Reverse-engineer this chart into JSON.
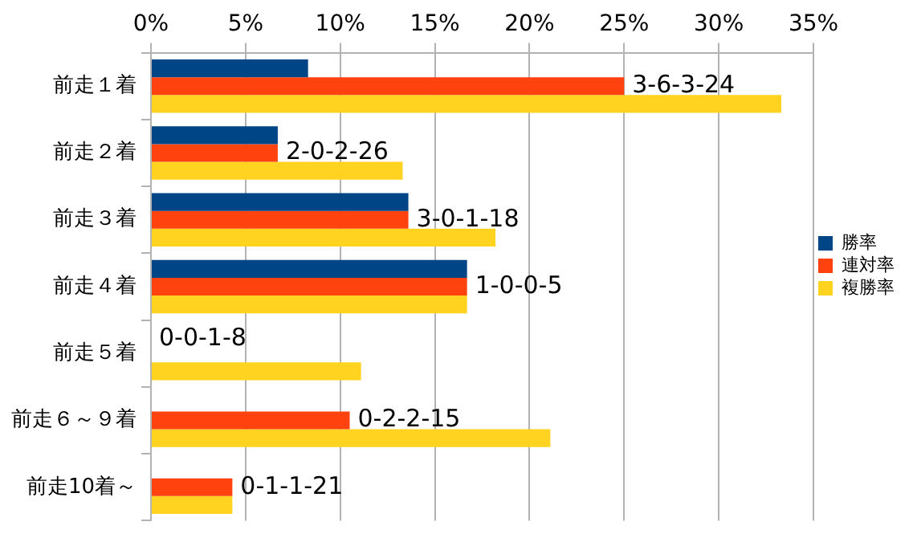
{
  "chart_data": {
    "type": "bar",
    "orientation": "horizontal",
    "categories": [
      "前走１着",
      "前走２着",
      "前走３着",
      "前走４着",
      "前走５着",
      "前走６～９着",
      "前走10着～"
    ],
    "series": [
      {
        "name": "勝率",
        "color": "#004586",
        "values": [
          8.3,
          6.7,
          13.6,
          16.7,
          0,
          0,
          0
        ]
      },
      {
        "name": "連対率",
        "color": "#ff420e",
        "values": [
          25,
          6.7,
          13.6,
          16.7,
          0,
          10.5,
          4.3
        ]
      },
      {
        "name": "複勝率",
        "color": "#ffd320",
        "values": [
          33.3,
          13.3,
          18.2,
          16.7,
          11.1,
          21.1,
          4.3
        ]
      }
    ],
    "xlim": [
      0,
      35
    ],
    "xticks": [
      {
        "value": 0,
        "label": "0%"
      },
      {
        "value": 5,
        "label": "5%"
      },
      {
        "value": 10,
        "label": "10%"
      },
      {
        "value": 15,
        "label": "15%"
      },
      {
        "value": 20,
        "label": "20%"
      },
      {
        "value": 25,
        "label": "25%"
      },
      {
        "value": 30,
        "label": "30%"
      },
      {
        "value": 35,
        "label": "35%"
      }
    ],
    "grid": "x",
    "legend": "right",
    "annotations": [
      {
        "text": "3-6-3-24",
        "x": 25,
        "y": "前走１着"
      },
      {
        "text": "2-0-2-26",
        "x": 6.7,
        "y": "前走２着"
      },
      {
        "text": "3-0-1-18",
        "x": 13.6,
        "y": "前走３着"
      },
      {
        "text": "1-0-0-5",
        "x": 16.7,
        "y": "前走４着"
      },
      {
        "text": "0-0-1-8",
        "x": 0,
        "y": "前走５着"
      },
      {
        "text": "0-2-2-15",
        "x": 10.5,
        "y": "前走６～９着"
      },
      {
        "text": "0-1-1-21",
        "x": 4.3,
        "y": "前走10着～"
      }
    ]
  }
}
